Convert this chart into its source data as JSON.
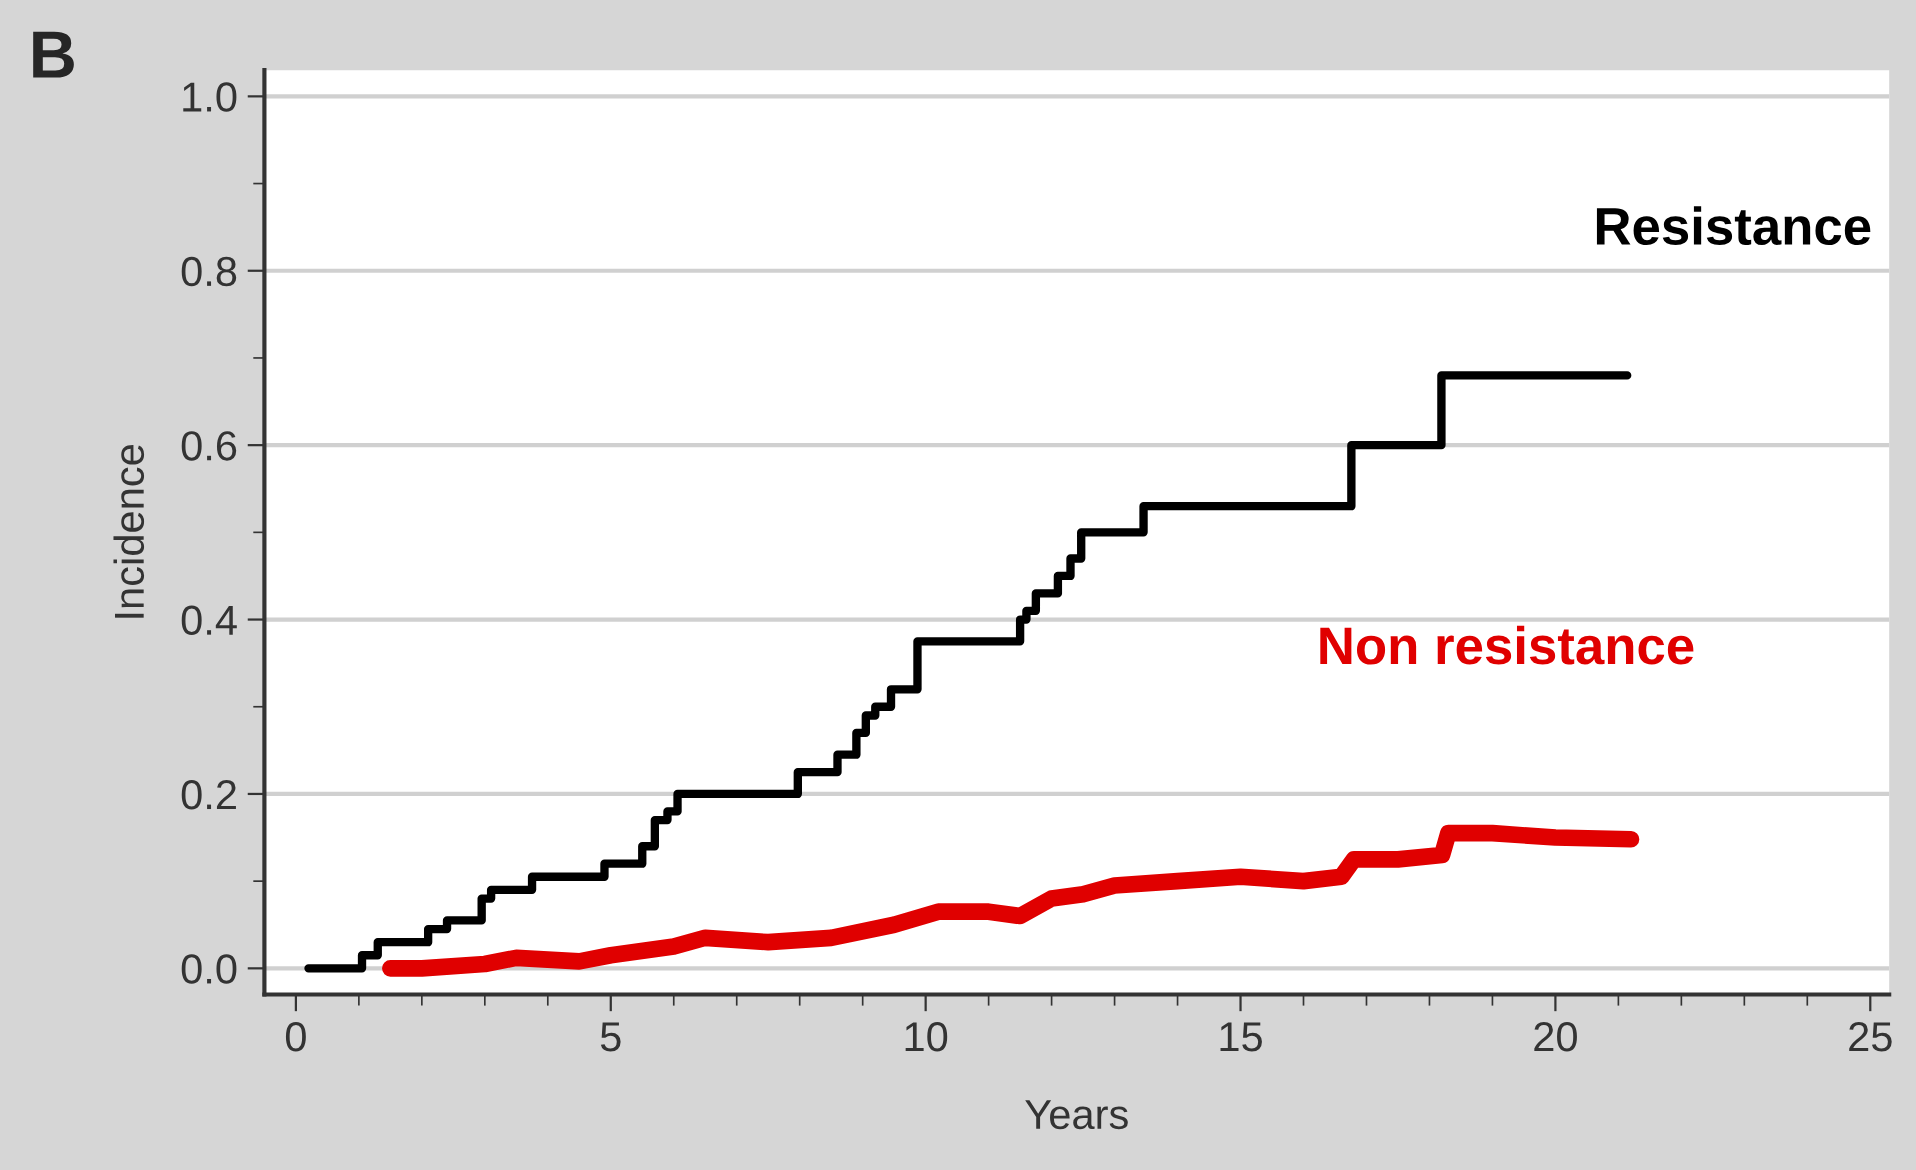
{
  "chart_data": {
    "type": "step",
    "title": "B",
    "xlabel": "Years",
    "ylabel": "Incidence",
    "xlim": [
      -0.5,
      25.3
    ],
    "ylim": [
      -0.03,
      1.03
    ],
    "xticks": [
      0,
      5,
      10,
      15,
      20,
      25
    ],
    "yticks": [
      {
        "value": 0,
        "label": "0.0"
      },
      0.2,
      0.4,
      0.6,
      0.8,
      {
        "value": 1,
        "label": "1.0"
      }
    ],
    "grid": "y",
    "legend": false,
    "series": [
      {
        "name": "Resistance",
        "color": "#000000",
        "x": [
          0.2,
          1.05,
          1.3,
          2.1,
          2.4,
          2.95,
          3.1,
          3.75,
          4.9,
          5.5,
          5.7,
          5.9,
          6.06,
          7.97,
          8.6,
          8.9,
          9.05,
          9.2,
          9.45,
          9.87,
          11.5,
          11.6,
          11.75,
          12.1,
          12.3,
          12.47,
          13.46,
          16.76,
          18.19,
          21.14
        ],
        "values": [
          0.0,
          0.015,
          0.03,
          0.045,
          0.055,
          0.08,
          0.09,
          0.105,
          0.12,
          0.14,
          0.17,
          0.18,
          0.2,
          0.225,
          0.245,
          0.27,
          0.29,
          0.3,
          0.32,
          0.375,
          0.4,
          0.41,
          0.43,
          0.45,
          0.47,
          0.5,
          0.53,
          0.6,
          0.68,
          0.68
        ]
      },
      {
        "name": "Non resistance",
        "color": "#e00000",
        "type": "line",
        "x": [
          1.5,
          2,
          3,
          3.5,
          4.5,
          5,
          6,
          6.5,
          7.5,
          8.5,
          9.5,
          10.2,
          11,
          11.5,
          12,
          12.5,
          13,
          14,
          15,
          16,
          16.6,
          16.8,
          17.5,
          18.2,
          18.3,
          19,
          20,
          21.2
        ],
        "values": [
          0.0,
          0.0,
          0.005,
          0.012,
          0.008,
          0.015,
          0.025,
          0.035,
          0.03,
          0.035,
          0.05,
          0.065,
          0.065,
          0.06,
          0.08,
          0.085,
          0.095,
          0.1,
          0.105,
          0.1,
          0.105,
          0.125,
          0.125,
          0.13,
          0.155,
          0.155,
          0.15,
          0.148
        ]
      }
    ]
  }
}
